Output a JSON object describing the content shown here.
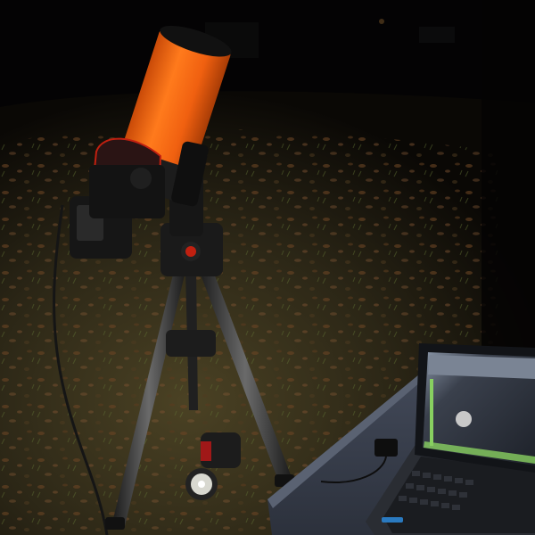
{
  "scene": {
    "colors": {
      "sky": "#040304",
      "ground": "#2e2818",
      "leaves": "#5a3a1e",
      "grass": "#4a5a2a",
      "telescope_tube": "#f06010",
      "mount": "#1a1a1a",
      "tripod": "#2a2a2a",
      "table": "#3c4250",
      "laptop_screen": "#2a2e38",
      "laptop_ui_accent": "#88d060",
      "moon": "#c8c8c8",
      "red_accent": "#c02010"
    },
    "objects": [
      "night-sky",
      "grass-ground",
      "orange-telescope-tube",
      "telescope-mount",
      "tripod",
      "flashlight",
      "folding-table",
      "laptop",
      "laptop-screen-moon"
    ]
  }
}
